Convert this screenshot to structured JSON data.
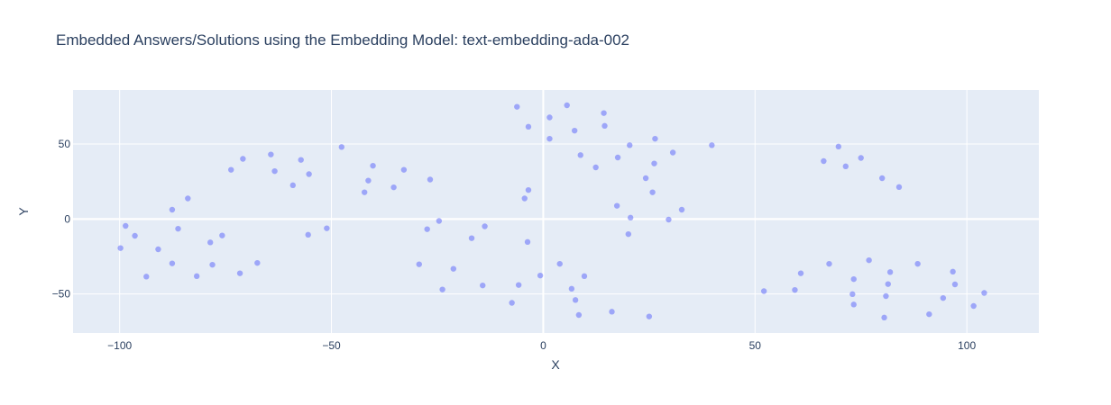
{
  "chart_data": {
    "type": "scatter",
    "title": "Embedded Answers/Solutions using the Embedding Model: text-embedding-ada-002",
    "xlabel": "X",
    "ylabel": "Y",
    "xlim": [
      -111,
      117
    ],
    "ylim": [
      -76,
      86
    ],
    "xticks": [
      -100,
      -50,
      0,
      50,
      100
    ],
    "yticks": [
      -50,
      0,
      50
    ],
    "xtick_labels": [
      "−100",
      "−50",
      "0",
      "50",
      "100"
    ],
    "ytick_labels": [
      "−50",
      "0",
      "50"
    ],
    "grid": true,
    "colors": {
      "marker": "#636efa",
      "plot_bg": "#e5ecf6",
      "grid": "#ffffff",
      "text": "#2a3f5f"
    },
    "points": [
      [
        -99.8,
        -19.4
      ],
      [
        -98.6,
        -4.6
      ],
      [
        -96.4,
        -11.2
      ],
      [
        -93.7,
        -38.4
      ],
      [
        -90.9,
        -20.2
      ],
      [
        -87.6,
        -29.6
      ],
      [
        -87.6,
        6.2
      ],
      [
        -86.2,
        -6.5
      ],
      [
        -83.9,
        13.7
      ],
      [
        -81.8,
        -38.1
      ],
      [
        -78.6,
        -15.6
      ],
      [
        -78.1,
        -30.5
      ],
      [
        -75.8,
        -11.0
      ],
      [
        -73.7,
        32.8
      ],
      [
        -71.6,
        -36.2
      ],
      [
        -70.9,
        40.1
      ],
      [
        -67.5,
        -29.3
      ],
      [
        -64.3,
        43.0
      ],
      [
        -63.4,
        31.9
      ],
      [
        -59.1,
        22.5
      ],
      [
        -57.2,
        39.4
      ],
      [
        -55.5,
        -10.5
      ],
      [
        -55.3,
        29.9
      ],
      [
        -51.1,
        -6.2
      ],
      [
        -47.6,
        48.0
      ],
      [
        -42.2,
        17.8
      ],
      [
        -41.3,
        25.6
      ],
      [
        -40.2,
        35.5
      ],
      [
        -35.3,
        21.1
      ],
      [
        -32.9,
        32.8
      ],
      [
        -29.3,
        -30.2
      ],
      [
        -27.4,
        -6.8
      ],
      [
        -26.7,
        26.3
      ],
      [
        -24.6,
        -1.3
      ],
      [
        -23.8,
        -47.0
      ],
      [
        -21.2,
        -33.2
      ],
      [
        -16.9,
        -12.8
      ],
      [
        -14.3,
        -44.3
      ],
      [
        -13.8,
        -4.9
      ],
      [
        -7.4,
        -55.9
      ],
      [
        -6.2,
        74.8
      ],
      [
        -5.8,
        -44.0
      ],
      [
        -4.4,
        13.7
      ],
      [
        -3.7,
        -15.3
      ],
      [
        -3.5,
        19.3
      ],
      [
        -3.5,
        61.5
      ],
      [
        -0.7,
        -37.7
      ],
      [
        1.5,
        67.7
      ],
      [
        1.5,
        53.5
      ],
      [
        3.9,
        -29.9
      ],
      [
        5.6,
        75.8
      ],
      [
        6.7,
        -46.5
      ],
      [
        7.6,
        -54.0
      ],
      [
        7.4,
        58.9
      ],
      [
        8.4,
        -64.0
      ],
      [
        8.8,
        42.6
      ],
      [
        9.7,
        -38.1
      ],
      [
        12.4,
        34.4
      ],
      [
        14.3,
        70.6
      ],
      [
        14.5,
        62.1
      ],
      [
        16.2,
        -61.8
      ],
      [
        17.4,
        8.8
      ],
      [
        17.6,
        41.0
      ],
      [
        20.1,
        -10.1
      ],
      [
        20.4,
        49.2
      ],
      [
        20.6,
        0.9
      ],
      [
        24.2,
        27.2
      ],
      [
        25.0,
        -65.0
      ],
      [
        25.8,
        17.8
      ],
      [
        26.4,
        53.5
      ],
      [
        26.2,
        37.0
      ],
      [
        29.6,
        -0.4
      ],
      [
        30.6,
        44.3
      ],
      [
        32.7,
        6.2
      ],
      [
        39.8,
        49.2
      ],
      [
        52.1,
        -48.1
      ],
      [
        59.4,
        -47.3
      ],
      [
        60.8,
        -36.2
      ],
      [
        66.2,
        38.6
      ],
      [
        67.5,
        -29.9
      ],
      [
        69.7,
        48.3
      ],
      [
        71.4,
        35.1
      ],
      [
        73.0,
        -50.1
      ],
      [
        73.3,
        -40.1
      ],
      [
        73.3,
        -57.0
      ],
      [
        75.0,
        40.7
      ],
      [
        76.9,
        -27.5
      ],
      [
        80.0,
        27.2
      ],
      [
        80.5,
        -65.7
      ],
      [
        80.9,
        -51.4
      ],
      [
        81.4,
        -43.4
      ],
      [
        81.9,
        -35.4
      ],
      [
        84.0,
        21.3
      ],
      [
        88.4,
        -29.9
      ],
      [
        91.1,
        -63.5
      ],
      [
        94.4,
        -52.7
      ],
      [
        96.7,
        -35.1
      ],
      [
        97.2,
        -43.6
      ],
      [
        101.6,
        -58.0
      ],
      [
        104.1,
        -49.3
      ]
    ]
  }
}
